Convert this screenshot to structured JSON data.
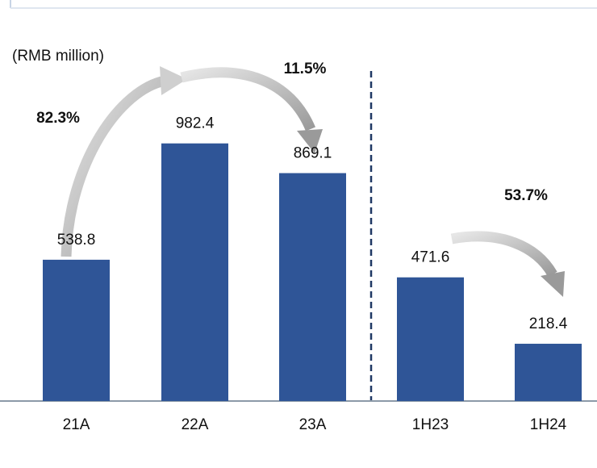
{
  "chart_data": {
    "type": "bar",
    "subtitle": "(RMB million)",
    "categories": [
      "21A",
      "22A",
      "23A",
      "1H23",
      "1H24"
    ],
    "values": [
      538.8,
      982.4,
      869.1,
      471.6,
      218.4
    ],
    "color": "#2f5597",
    "ylim": [
      0,
      1200
    ],
    "annotations": [
      {
        "text": "82.3%",
        "color": "#1aa655"
      },
      {
        "text": "11.5%",
        "color": "#ee1111"
      },
      {
        "text": "53.7%",
        "color": "#ee1111"
      }
    ]
  }
}
